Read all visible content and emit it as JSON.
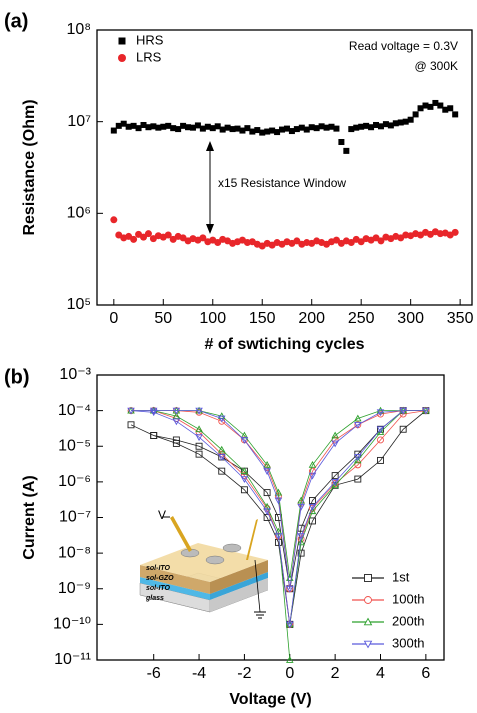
{
  "chart_data": [
    {
      "type": "scatter",
      "panel_label": "(a)",
      "y_label": "Resistance (Ohm)",
      "x_label": "# of swtiching cycles",
      "annotations": [
        "Read voltage = 0.3V",
        "@ 300K",
        "x15 Resistance Window"
      ],
      "log_y": true,
      "legend": "top-left",
      "xlim": [
        -17,
        362
      ],
      "xticks": [
        0,
        50,
        100,
        150,
        200,
        250,
        300,
        350
      ],
      "ylim": [
        100000,
        100000000
      ],
      "yticks": [
        {
          "value": 100000,
          "label": "10⁵"
        },
        {
          "value": 1000000,
          "label": "10⁶"
        },
        {
          "value": 10000000,
          "label": "10⁷"
        },
        {
          "value": 100000000,
          "label": "10⁸"
        }
      ],
      "x": [
        0,
        5,
        10,
        15,
        20,
        25,
        30,
        35,
        40,
        45,
        50,
        55,
        60,
        65,
        70,
        75,
        80,
        85,
        90,
        95,
        100,
        105,
        110,
        115,
        120,
        125,
        130,
        135,
        140,
        145,
        150,
        155,
        160,
        165,
        170,
        175,
        180,
        185,
        190,
        195,
        200,
        205,
        210,
        215,
        220,
        225,
        230,
        235,
        240,
        245,
        250,
        255,
        260,
        265,
        270,
        275,
        280,
        285,
        290,
        295,
        300,
        305,
        310,
        315,
        320,
        325,
        330,
        335,
        340,
        345
      ],
      "series": [
        {
          "name": "HRS",
          "color": "#000000",
          "marker": "square",
          "values": [
            8000000.0,
            9000000.0,
            9500000.0,
            8800000.0,
            9000000.0,
            8500000.0,
            9200000.0,
            8700000.0,
            8900000.0,
            8600000.0,
            8800000.0,
            9000000.0,
            8500000.0,
            8300000.0,
            9000000.0,
            8700000.0,
            8600000.0,
            9100000.0,
            8400000.0,
            8800000.0,
            8500000.0,
            8900000.0,
            8200000.0,
            8600000.0,
            8300000.0,
            8400000.0,
            8000000.0,
            8500000.0,
            7800000.0,
            8100000.0,
            7600000.0,
            7800000.0,
            8000000.0,
            7700000.0,
            8200000.0,
            8400000.0,
            7900000.0,
            8300000.0,
            8600000.0,
            8200000.0,
            8700000.0,
            8500000.0,
            8900000.0,
            8600000.0,
            8800000.0,
            8400000.0,
            6000000.0,
            4800000.0,
            8300000.0,
            8600000.0,
            8800000.0,
            9000000.0,
            8700000.0,
            9200000.0,
            8900000.0,
            9400000.0,
            9100000.0,
            9600000.0,
            9800000.0,
            10000000.0,
            10500000.0,
            12000000.0,
            14000000.0,
            15000000.0,
            14500000.0,
            16000000.0,
            15000000.0,
            13500000.0,
            14000000.0,
            12000000.0
          ]
        },
        {
          "name": "LRS",
          "color": "#e8262a",
          "marker": "circle",
          "values": [
            850000.0,
            580000.0,
            540000.0,
            560000.0,
            520000.0,
            590000.0,
            550000.0,
            600000.0,
            530000.0,
            570000.0,
            550000.0,
            580000.0,
            520000.0,
            560000.0,
            540000.0,
            500000.0,
            530000.0,
            510000.0,
            540000.0,
            490000.0,
            510000.0,
            480000.0,
            520000.0,
            500000.0,
            470000.0,
            490000.0,
            510000.0,
            480000.0,
            490000.0,
            460000.0,
            440000.0,
            470000.0,
            450000.0,
            480000.0,
            460000.0,
            490000.0,
            470000.0,
            500000.0,
            460000.0,
            480000.0,
            470000.0,
            500000.0,
            480000.0,
            460000.0,
            490000.0,
            510000.0,
            470000.0,
            500000.0,
            480000.0,
            520000.0,
            490000.0,
            530000.0,
            510000.0,
            540000.0,
            500000.0,
            550000.0,
            530000.0,
            560000.0,
            540000.0,
            580000.0,
            570000.0,
            600000.0,
            580000.0,
            620000.0,
            590000.0,
            630000.0,
            600000.0,
            610000.0,
            580000.0,
            620000.0
          ]
        }
      ]
    },
    {
      "type": "line",
      "panel_label": "(b)",
      "y_label": "Current (A)",
      "x_label": "Voltage (V)",
      "inset_labels": [
        "V",
        "sol-ITO",
        "sol-GZO",
        "sol-ITO",
        "glass"
      ],
      "log_y": true,
      "legend": "bottom-right",
      "xlim": [
        -8.5,
        6.8
      ],
      "xticks": [
        -6,
        -4,
        -2,
        0,
        2,
        4,
        6
      ],
      "ylim": [
        1e-11,
        0.001
      ],
      "yticks": [
        {
          "value": 1e-11,
          "label": "10⁻¹¹"
        },
        {
          "value": 1e-10,
          "label": "10⁻¹⁰"
        },
        {
          "value": 1e-09,
          "label": "10⁻⁹"
        },
        {
          "value": 1e-08,
          "label": "10⁻⁸"
        },
        {
          "value": 1e-07,
          "label": "10⁻⁷"
        },
        {
          "value": 1e-06,
          "label": "10⁻⁶"
        },
        {
          "value": 1e-05,
          "label": "10⁻⁵"
        },
        {
          "value": 0.0001,
          "label": "10⁻⁴"
        },
        {
          "value": 0.001,
          "label": "10⁻³"
        }
      ],
      "x": [
        0,
        0.5,
        1,
        2,
        3,
        4,
        5,
        6,
        5,
        4,
        3,
        2,
        1,
        0.5,
        0,
        -0.5,
        -1,
        -2,
        -3,
        -4,
        -5,
        -6,
        -7,
        -6,
        -5,
        -4,
        -3,
        -2,
        -1,
        -0.5,
        0
      ],
      "series": [
        {
          "name": "1st",
          "color": "#222222",
          "marker": "square",
          "values": [
            1e-10,
            1e-08,
            8e-08,
            8e-07,
            1.2e-06,
            4e-06,
            3e-05,
            0.0001,
            0.0001,
            3e-05,
            6e-06,
            1.5e-06,
            3e-07,
            5e-08,
            1e-09,
            1e-07,
            5e-07,
            2e-06,
            5e-06,
            1e-05,
            1.5e-05,
            2e-05,
            4e-05,
            2e-05,
            1.2e-05,
            6e-06,
            2e-06,
            6e-07,
            1e-07,
            2e-08,
            1e-10
          ]
        },
        {
          "name": "100th",
          "color": "#f0524d",
          "marker": "circle",
          "values": [
            1e-10,
            2.5e-08,
            1.8e-07,
            9e-07,
            3e-06,
            1.5e-05,
            8e-05,
            0.0001,
            0.0001,
            8e-05,
            4e-05,
            1.5e-05,
            2e-06,
            2.5e-07,
            1e-09,
            4e-07,
            2.5e-06,
            1.5e-05,
            5e-05,
            9e-05,
            0.0001,
            0.0001,
            0.0001,
            0.0001,
            6e-05,
            2.5e-05,
            6e-06,
            1.5e-06,
            1.8e-07,
            3e-08,
            1e-10
          ]
        },
        {
          "name": "200th",
          "color": "#2ca02c",
          "marker": "triangle-up",
          "values": [
            1e-10,
            2e-08,
            1.5e-07,
            8e-07,
            4e-06,
            2.5e-05,
            0.0001,
            0.0001,
            0.0001,
            0.0001,
            6e-05,
            2e-05,
            3e-06,
            3e-07,
            2e-09,
            5e-07,
            3e-06,
            2e-05,
            7e-05,
            0.0001,
            0.0001,
            0.0001,
            0.0001,
            0.0001,
            7e-05,
            3e-05,
            8e-06,
            2e-06,
            2e-07,
            4e-08,
            1e-11
          ]
        },
        {
          "name": "300th",
          "color": "#5a5adc",
          "marker": "triangle-down",
          "values": [
            1e-10,
            3e-08,
            2e-07,
            1e-06,
            5e-06,
            3e-05,
            0.0001,
            0.0001,
            0.0001,
            9e-05,
            4e-05,
            1.2e-05,
            1.5e-06,
            2e-07,
            1e-09,
            3e-07,
            2e-06,
            1.5e-05,
            6e-05,
            0.0001,
            0.0001,
            0.0001,
            0.0001,
            9e-05,
            5e-05,
            1.8e-05,
            5e-06,
            1.2e-06,
            1.5e-07,
            3e-08,
            1e-10
          ]
        }
      ]
    }
  ]
}
